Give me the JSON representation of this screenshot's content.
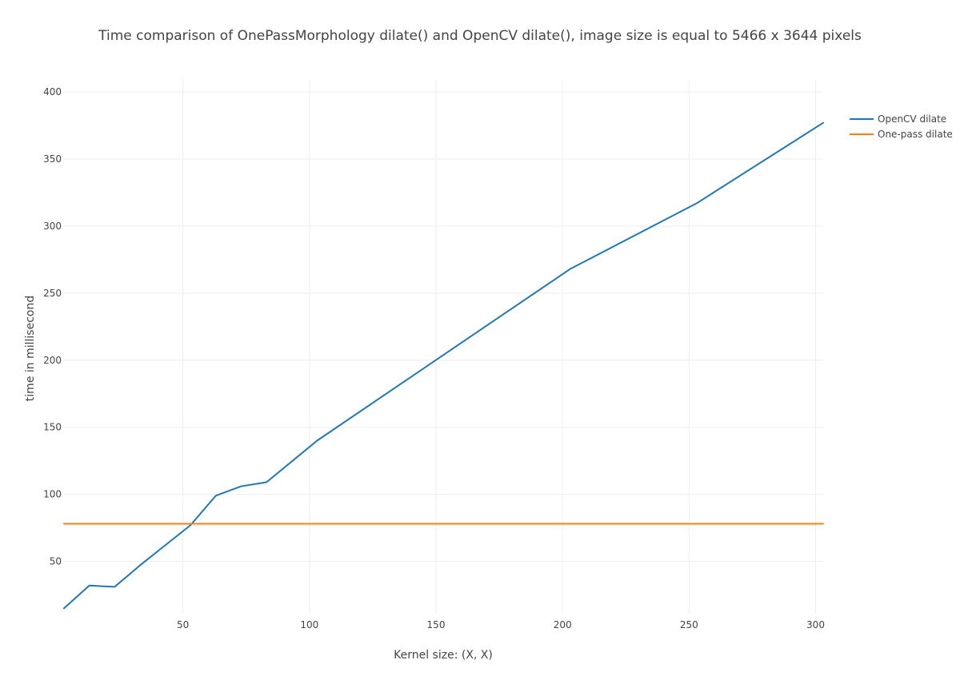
{
  "chart_data": {
    "type": "line",
    "title": "Time comparison of OnePassMorphology dilate() and OpenCV dilate(), image size is equal to 5466 x 3644 pixels",
    "xlabel": "Kernel size: (X, X)",
    "ylabel": "time in millisecond",
    "xlim": [
      3,
      303
    ],
    "ylim": [
      11,
      409
    ],
    "xticks": [
      50,
      100,
      150,
      200,
      250,
      300
    ],
    "yticks": [
      50,
      100,
      150,
      200,
      250,
      300,
      350,
      400
    ],
    "grid": true,
    "legend_position": "top-right",
    "series": [
      {
        "name": "OpenCV dilate",
        "color": "#1f77b4",
        "x": [
          3,
          13,
          23,
          33,
          43,
          53,
          63,
          73,
          83,
          103,
          153,
          203,
          253,
          303
        ],
        "y": [
          15,
          32,
          31,
          47,
          62,
          77,
          99,
          106,
          109,
          140,
          204,
          268,
          317,
          377
        ]
      },
      {
        "name": "One-pass dilate",
        "color": "#ff7f0e",
        "x": [
          3,
          303
        ],
        "y": [
          78,
          78
        ]
      }
    ]
  }
}
